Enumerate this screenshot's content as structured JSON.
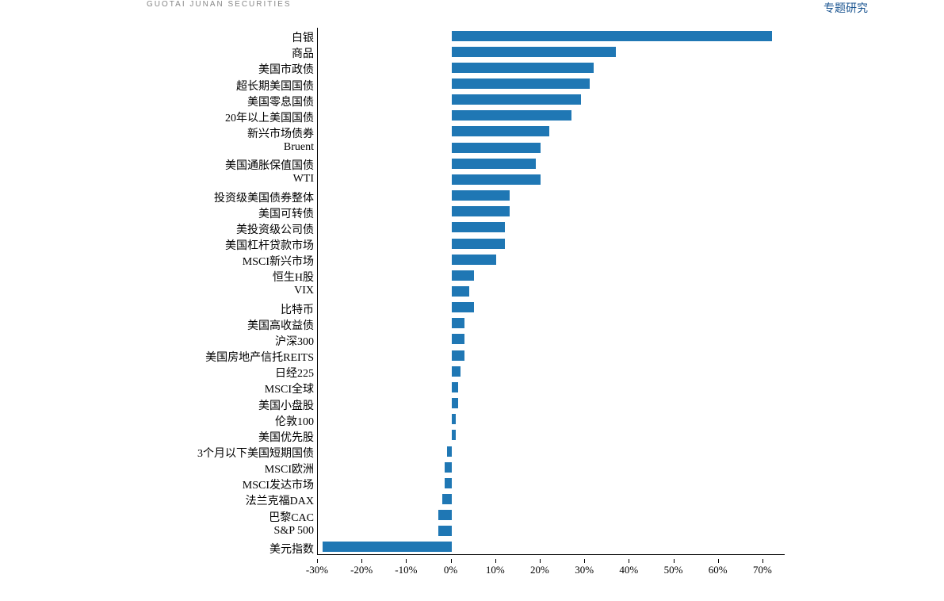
{
  "header": {
    "left_text": "GUOTAI JUNAN SECURITIES",
    "right_text": "专题研究"
  },
  "chart": {
    "type": "bar",
    "orientation": "horizontal",
    "bar_color": "#1f77b4",
    "background_color": "#ffffff",
    "axis_color": "#000000",
    "label_fontsize": 14,
    "tick_fontsize": 13,
    "xlim": [
      -30,
      75
    ],
    "x_ticks": [
      -30,
      -20,
      -10,
      0,
      10,
      20,
      30,
      40,
      50,
      60,
      70
    ],
    "x_tick_labels": [
      "-30%",
      "-20%",
      "-10%",
      "0%",
      "10%",
      "20%",
      "30%",
      "40%",
      "50%",
      "60%",
      "70%"
    ],
    "categories": [
      "白银",
      "商品",
      "美国市政债",
      "超长期美国国债",
      "美国零息国债",
      "20年以上美国国债",
      "新兴市场债券",
      "Bruent",
      "美国通胀保值国债",
      "WTI",
      "投资级美国债券整体",
      "美国可转债",
      "美投资级公司债",
      "美国杠杆贷款市场",
      "MSCI新兴市场",
      "恒生H股",
      "VIX",
      "比特币",
      "美国高收益债",
      "沪深300",
      "美国房地产信托REITS",
      "日经225",
      "MSCI全球",
      "美国小盘股",
      "伦敦100",
      "美国优先股",
      "3个月以下美国短期国债",
      "MSCI欧洲",
      "MSCI发达市场",
      "法兰克福DAX",
      "巴黎CAC",
      "S&P 500",
      "美元指数"
    ],
    "values": [
      72,
      37,
      32,
      31,
      29,
      27,
      22,
      20,
      19,
      20,
      13,
      13,
      12,
      12,
      10,
      5,
      4,
      5,
      3,
      3,
      3,
      2,
      1.5,
      1.5,
      1,
      1,
      -1,
      -1.5,
      -1.5,
      -2,
      -3,
      -3,
      -29
    ]
  }
}
